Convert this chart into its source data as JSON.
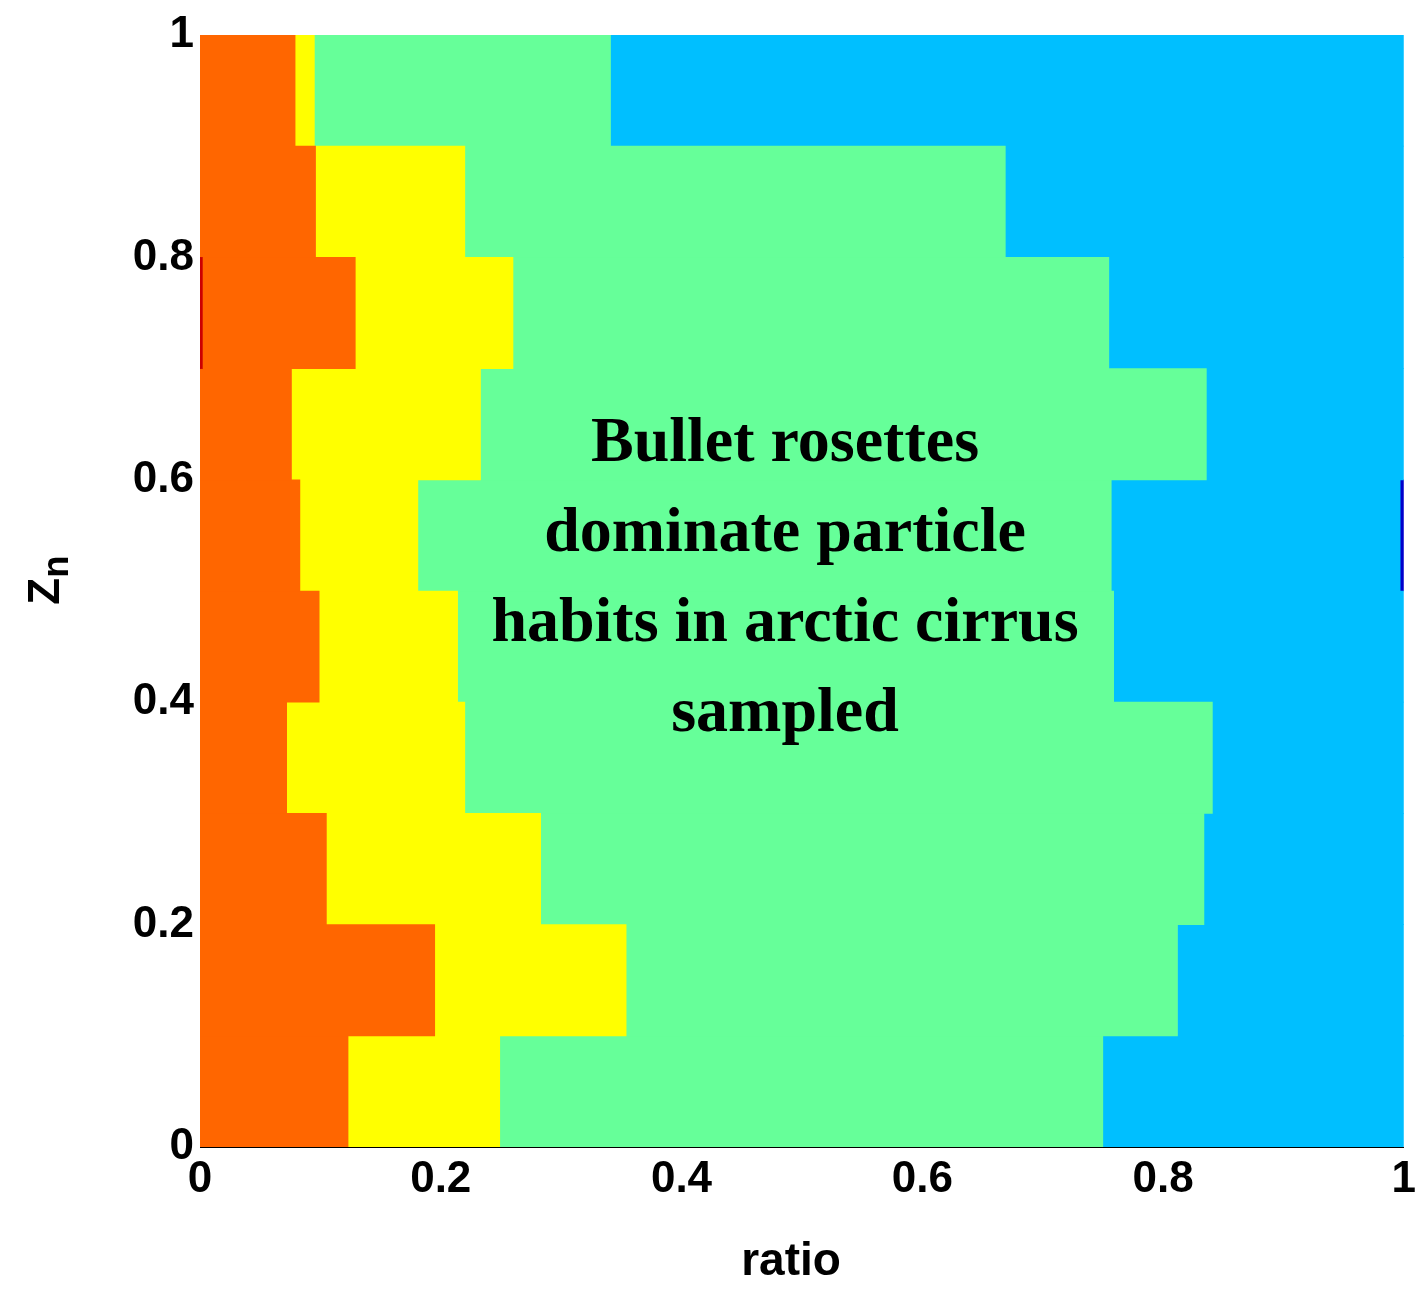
{
  "chart_data": {
    "type": "bar",
    "orientation": "horizontal",
    "stacked": true,
    "x": [
      0.05,
      0.15,
      0.25,
      0.35,
      0.45,
      0.55,
      0.65,
      0.75,
      0.85,
      0.95
    ],
    "series": [
      {
        "color": "#cc0000",
        "values": [
          null,
          null,
          null,
          null,
          null,
          null,
          null,
          0.002,
          null,
          null
        ]
      },
      {
        "color": "#ff6600",
        "values": [
          0.123,
          0.195,
          0.105,
          0.072,
          0.099,
          0.083,
          0.076,
          0.127,
          0.096,
          0.079
        ]
      },
      {
        "color": "#ffff00",
        "values": [
          0.126,
          0.159,
          0.178,
          0.148,
          0.115,
          0.098,
          0.157,
          0.131,
          0.124,
          0.016
        ]
      },
      {
        "color": "#66ff99",
        "values": [
          0.501,
          0.458,
          0.551,
          0.621,
          0.545,
          0.576,
          0.603,
          0.495,
          0.449,
          0.246
        ]
      },
      {
        "color": "#00bfff",
        "values": [
          0.25,
          0.188,
          0.166,
          0.159,
          0.241,
          0.24,
          0.164,
          0.245,
          0.331,
          0.659
        ]
      },
      {
        "color": "#0000cc",
        "values": [
          null,
          null,
          null,
          null,
          null,
          0.003,
          null,
          null,
          null,
          null
        ]
      }
    ],
    "xlabel": "ratio",
    "ylabel": "Z$_{n}$",
    "xlim": [
      0,
      1
    ],
    "xticks": [
      0,
      0.2,
      0.4,
      0.6,
      0.8,
      1
    ],
    "ylim": [
      0,
      1
    ],
    "yticks": [
      0,
      0.2,
      0.4,
      0.6,
      0.8,
      1
    ],
    "grid": false,
    "legend": false,
    "annotations": [
      "Bullet rosettes dominate particle habits in arctic cirrus sampled"
    ]
  }
}
